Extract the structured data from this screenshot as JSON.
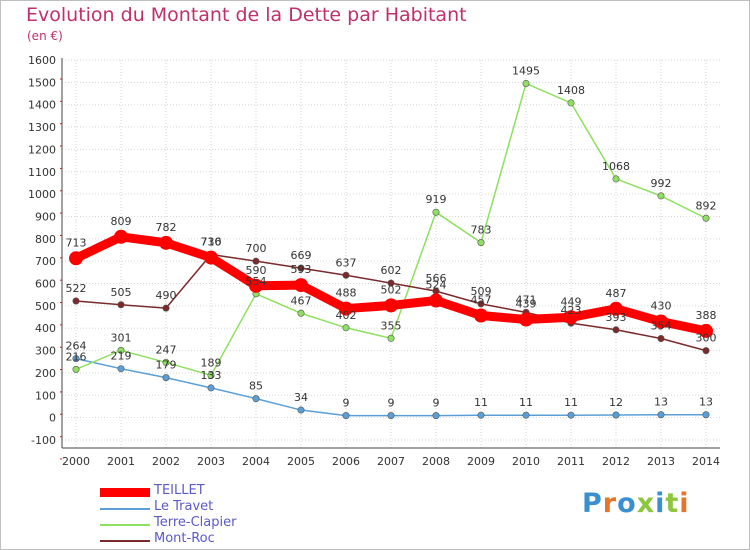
{
  "page": {
    "title": "Evolution du Montant de la Dette par Habitant",
    "unit": "(en €)"
  },
  "logo": {
    "text": "Proxiti",
    "letter_colors": [
      "#3a8fd0",
      "#e8732a",
      "#3a8fd0",
      "#8dc63f",
      "#3a8fd0",
      "#8dc63f",
      "#e8732a"
    ]
  },
  "chart_data": {
    "type": "line",
    "title": "Evolution du Montant de la Dette par Habitant",
    "ylabel": "(en €)",
    "xlabel": "",
    "x": [
      "2000",
      "2001",
      "2002",
      "2003",
      "2004",
      "2005",
      "2006",
      "2007",
      "2008",
      "2009",
      "2010",
      "2011",
      "2012",
      "2013",
      "2014"
    ],
    "ylim": [
      -100,
      1600
    ],
    "yticks": [
      "-100",
      "0",
      "100",
      "200",
      "300",
      "400",
      "500",
      "600",
      "700",
      "800",
      "900",
      "1000",
      "1100",
      "1200",
      "1300",
      "1400",
      "1500",
      "1600"
    ],
    "grid": true,
    "legend_position": "bottom-left",
    "series": [
      {
        "name": "TEILLET",
        "color": "#ff0000",
        "emphasis": true,
        "values": [
          713,
          809,
          782,
          716,
          590,
          593,
          488,
          502,
          524,
          457,
          439,
          449,
          487,
          430,
          388
        ],
        "labels": [
          "713",
          "809",
          "782",
          "716",
          "590",
          "593",
          "488",
          "502",
          "524",
          "457",
          "439",
          "449",
          "487",
          "430",
          "388"
        ]
      },
      {
        "name": "Le Travet",
        "color": "#5b9fd6",
        "emphasis": false,
        "values": [
          264,
          219,
          179,
          133,
          85,
          34,
          9,
          9,
          9,
          11,
          11,
          11,
          12,
          13,
          13
        ],
        "labels": [
          "264",
          "219",
          "179",
          "133",
          "85",
          "34",
          "9",
          "9",
          "9",
          "11",
          "11",
          "11",
          "12",
          "13",
          "13"
        ]
      },
      {
        "name": "Terre-Clapier",
        "color": "#8fe060",
        "emphasis": false,
        "values": [
          216,
          301,
          247,
          189,
          554,
          467,
          402,
          355,
          919,
          783,
          1495,
          1408,
          1068,
          992,
          892
        ],
        "labels": [
          "216",
          "301",
          "247",
          "189",
          "554",
          "467",
          "402",
          "355",
          "919",
          "783",
          "1495",
          "1408",
          "1068",
          "992",
          "892"
        ]
      },
      {
        "name": "Mont-Roc",
        "color": "#7a2a2a",
        "emphasis": false,
        "values": [
          522,
          505,
          490,
          730,
          700,
          669,
          637,
          602,
          566,
          509,
          471,
          423,
          393,
          354,
          300
        ],
        "labels": [
          "522",
          "505",
          "490",
          "730",
          "700",
          "669",
          "637",
          "602",
          "566",
          "509",
          "471",
          "423",
          "393",
          "354",
          "300"
        ]
      }
    ]
  }
}
